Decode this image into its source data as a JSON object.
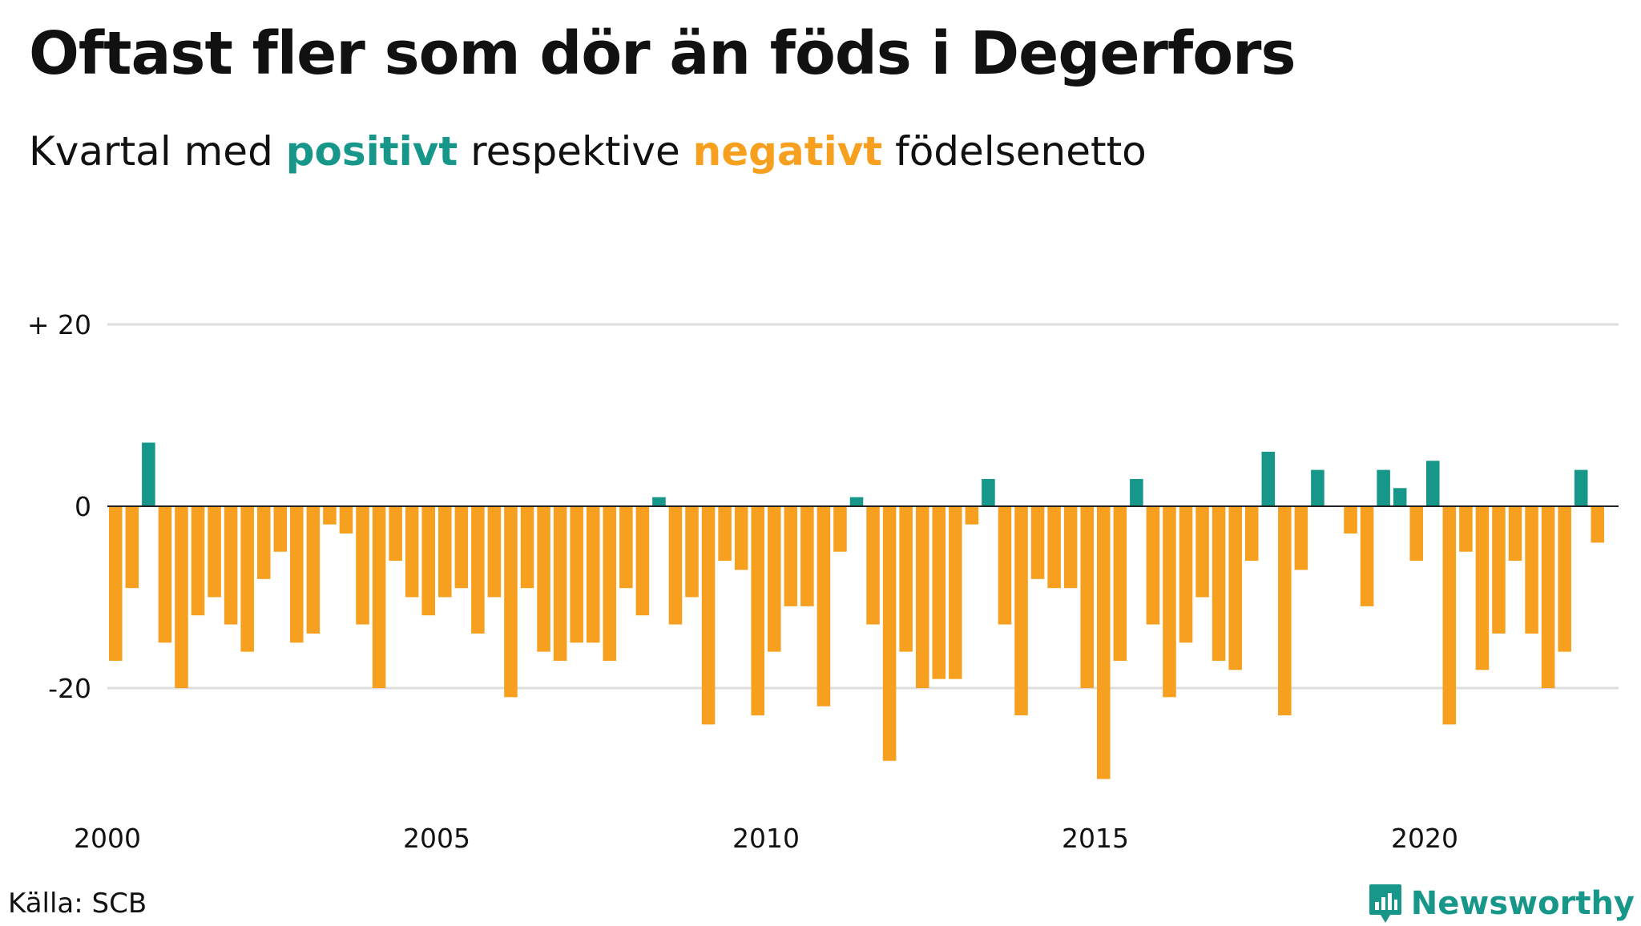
{
  "title": "Oftast fler som dör än föds i Degerfors",
  "subtitle": {
    "before": "Kvartal med ",
    "positive_word": "positivt",
    "middle": " respektive ",
    "negative_word": "negativt",
    "after": " födelsenetto"
  },
  "colors": {
    "positive": "#16978a",
    "negative": "#f7a01f",
    "gridline": "#dddddd",
    "baseline": "#222222",
    "text": "#111111"
  },
  "source": "Källa: SCB",
  "brand": {
    "name": "Newsworthy",
    "icon": "newsworthy-logo-icon"
  },
  "chart_data": {
    "type": "bar",
    "x_start": 2000,
    "x_end": 2022.9,
    "x_ticks": [
      "2000",
      "2005",
      "2010",
      "2015",
      "2020"
    ],
    "y_ticks": [
      {
        "value": 20,
        "label": "+ 20"
      },
      {
        "value": 0,
        "label": "0"
      },
      {
        "value": -20,
        "label": "-20"
      }
    ],
    "ylim": [
      -31,
      24
    ],
    "grid": true,
    "legend": "none",
    "series": [
      {
        "values": [
          -17,
          -9,
          7,
          -15,
          -20,
          -12,
          -10,
          -13,
          -16,
          -8,
          -5,
          -15,
          -14,
          -2,
          -3,
          -13,
          -20,
          -6,
          -10,
          -12,
          -10,
          -9,
          -14,
          -10,
          -21,
          -9,
          -16,
          -17,
          -15,
          -15,
          -17,
          -9,
          -12,
          1,
          -13,
          -10,
          -24,
          -6,
          -7,
          -23,
          -16,
          -11,
          -11,
          -22,
          -5,
          1,
          -13,
          -28,
          -16,
          -20,
          -19,
          -19,
          -2,
          3,
          -13,
          -23,
          -8,
          -9,
          -9,
          -20,
          -30,
          -17,
          3,
          -13,
          -21,
          -15,
          -10,
          -17,
          -18,
          -6,
          6,
          -23,
          -7,
          4,
          0,
          -3,
          -11,
          4,
          2,
          -6,
          5,
          -24,
          -5,
          -18,
          -14,
          -6,
          -14,
          -20,
          -16,
          4,
          -4
        ]
      }
    ]
  }
}
